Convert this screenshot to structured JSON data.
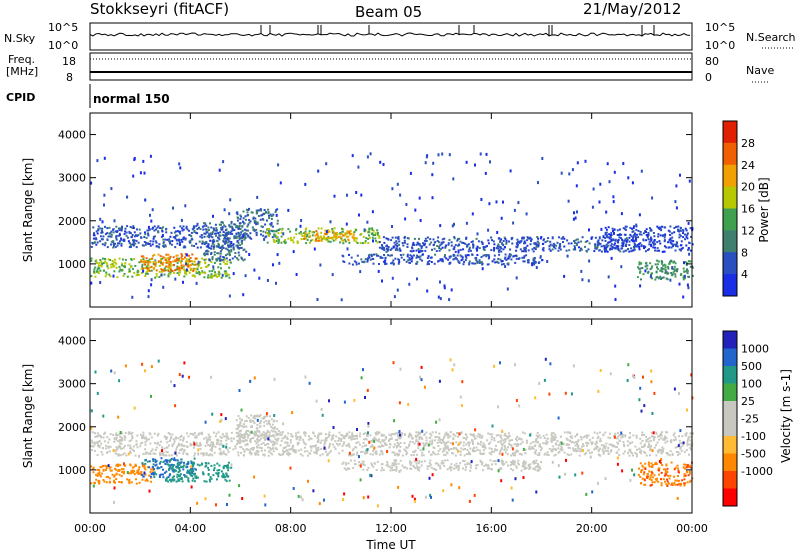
{
  "header": {
    "station": "Stokkseyri (fitACF)",
    "beam": "Beam 05",
    "date": "21/May/2012"
  },
  "top_panels": {
    "nsky_label": "N.Sky",
    "nsearch_label": "N.Search",
    "nsky_ticks": [
      "10^5",
      "10^0"
    ],
    "nsearch_ticks": [
      "10^5",
      "10^0"
    ],
    "freq_label_1": "Freq.",
    "freq_label_2": "[MHz]",
    "freq_ticks": [
      "18",
      "8"
    ],
    "nave_label": "Nave",
    "nave_ticks": [
      "80",
      "0"
    ],
    "cpid_label": "CPID",
    "cpid_value": "normal 150"
  },
  "colors": {
    "power_scale": [
      "#1a2ee6",
      "#2a4fc0",
      "#3f7f6f",
      "#3fa050",
      "#b7c800",
      "#f0a000",
      "#f06000",
      "#e02000"
    ],
    "velocity_scale": [
      "#ff0000",
      "#ff4400",
      "#ff8800",
      "#ffbb33",
      "#c8c8c0",
      "#c8c8c0",
      "#44aa44",
      "#229988",
      "#2266cc",
      "#2222bb"
    ]
  },
  "chart_data": [
    {
      "type": "heatmap",
      "name": "power",
      "ylabel": "Slant Range [km]",
      "ylim": [
        0,
        4500
      ],
      "yticks": [
        "1000",
        "2000",
        "3000",
        "4000"
      ],
      "xlim": [
        0,
        24
      ],
      "colorbar_label": "Power [dB]",
      "colorbar_ticks": [
        "4",
        "8",
        "12",
        "16",
        "20",
        "24",
        "28"
      ],
      "colorbar_range": [
        0,
        32
      ],
      "regions": [
        {
          "t0": 0.0,
          "t1": 5.6,
          "r0": 700,
          "r1": 1150,
          "value": 16
        },
        {
          "t0": 2.0,
          "t1": 4.2,
          "r0": 850,
          "r1": 1250,
          "value": 24
        },
        {
          "t0": 0.0,
          "t1": 5.8,
          "r0": 1400,
          "r1": 1900,
          "value": 6
        },
        {
          "t0": 4.5,
          "t1": 6.2,
          "r0": 1100,
          "r1": 2000,
          "value": 8
        },
        {
          "t0": 5.8,
          "t1": 7.5,
          "r0": 1600,
          "r1": 2300,
          "value": 8
        },
        {
          "t0": 7.0,
          "t1": 11.5,
          "r0": 1500,
          "r1": 1850,
          "value": 16
        },
        {
          "t0": 8.5,
          "t1": 10.5,
          "r0": 1550,
          "r1": 1800,
          "value": 22
        },
        {
          "t0": 11.5,
          "t1": 21.8,
          "r0": 1300,
          "r1": 1650,
          "value": 6
        },
        {
          "t0": 10.0,
          "t1": 18.0,
          "r0": 1000,
          "r1": 1250,
          "value": 6
        },
        {
          "t0": 20.5,
          "t1": 24.0,
          "r0": 1300,
          "r1": 1900,
          "value": 5
        },
        {
          "t0": 21.8,
          "t1": 24.0,
          "r0": 650,
          "r1": 1100,
          "value": 12
        }
      ]
    },
    {
      "type": "heatmap",
      "name": "velocity",
      "ylabel": "Slant Range [km]",
      "ylim": [
        0,
        4500
      ],
      "yticks": [
        "1000",
        "2000",
        "3000",
        "4000"
      ],
      "xlim": [
        0,
        24
      ],
      "xticks": [
        "00:00",
        "04:00",
        "08:00",
        "12:00",
        "16:00",
        "20:00",
        "00:00"
      ],
      "xlabel": "Time UT",
      "colorbar_label": "Velocity [m s-1]",
      "colorbar_ticks": [
        "1000",
        "500",
        "100",
        "25",
        "-25",
        "-100",
        "-500",
        "-1000"
      ],
      "regions": [
        {
          "t0": 0.0,
          "t1": 2.5,
          "r0": 700,
          "r1": 1150,
          "value": -300
        },
        {
          "t0": 2.0,
          "t1": 4.2,
          "r0": 850,
          "r1": 1300,
          "value": 600
        },
        {
          "t0": 3.0,
          "t1": 5.6,
          "r0": 750,
          "r1": 1200,
          "value": 200
        },
        {
          "t0": 0.0,
          "t1": 24.0,
          "r0": 1350,
          "r1": 1900,
          "value": 0
        },
        {
          "t0": 5.8,
          "t1": 7.5,
          "r0": 1600,
          "r1": 2300,
          "value": 0
        },
        {
          "t0": 10.0,
          "t1": 18.0,
          "r0": 1000,
          "r1": 1250,
          "value": 0
        },
        {
          "t0": 21.8,
          "t1": 24.0,
          "r0": 650,
          "r1": 1200,
          "value": -400
        }
      ]
    }
  ]
}
